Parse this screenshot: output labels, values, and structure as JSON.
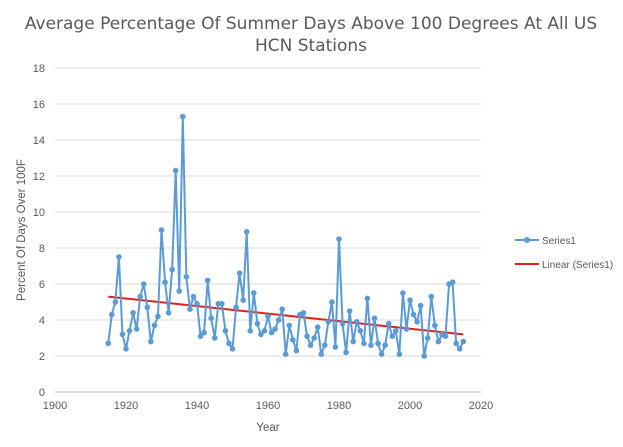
{
  "chart_data": {
    "type": "line",
    "title_lines": [
      "Average Percentage Of Summer Days Above 100 Degrees At All US",
      "HCN Stations"
    ],
    "xlabel": "Year",
    "ylabel": "Percent Of Days Over 100F",
    "xlim": [
      1900,
      2020
    ],
    "ylim": [
      0,
      18
    ],
    "x_ticks": [
      1900,
      1920,
      1940,
      1960,
      1980,
      2000,
      2020
    ],
    "y_ticks": [
      0,
      2,
      4,
      6,
      8,
      10,
      12,
      14,
      16,
      18
    ],
    "x_tick_labels": [
      "1900",
      "1920",
      "1940",
      "1960",
      "1980",
      "2000",
      "2020"
    ],
    "y_tick_labels": [
      "0",
      "2",
      "4",
      "6",
      "8",
      "10",
      "12",
      "14",
      "16",
      "18"
    ],
    "grid": true,
    "legend_position": "right",
    "series": [
      {
        "name": "Series1",
        "color": "#5b9bd5",
        "x": [
          1915,
          1916,
          1917,
          1918,
          1919,
          1920,
          1921,
          1922,
          1923,
          1924,
          1925,
          1926,
          1927,
          1928,
          1929,
          1930,
          1931,
          1932,
          1933,
          1934,
          1935,
          1936,
          1937,
          1938,
          1939,
          1940,
          1941,
          1942,
          1943,
          1944,
          1945,
          1946,
          1947,
          1948,
          1949,
          1950,
          1951,
          1952,
          1953,
          1954,
          1955,
          1956,
          1957,
          1958,
          1959,
          1960,
          1961,
          1962,
          1963,
          1964,
          1965,
          1966,
          1967,
          1968,
          1969,
          1970,
          1971,
          1972,
          1973,
          1974,
          1975,
          1976,
          1977,
          1978,
          1979,
          1980,
          1981,
          1982,
          1983,
          1984,
          1985,
          1986,
          1987,
          1988,
          1989,
          1990,
          1991,
          1992,
          1993,
          1994,
          1995,
          1996,
          1997,
          1998,
          1999,
          2000,
          2001,
          2002,
          2003,
          2004,
          2005,
          2006,
          2007,
          2008,
          2009,
          2010,
          2011,
          2012,
          2013,
          2014,
          2015
        ],
        "values": [
          2.7,
          4.3,
          5.0,
          7.5,
          3.2,
          2.4,
          3.4,
          4.4,
          3.5,
          5.3,
          6.0,
          4.7,
          2.8,
          3.7,
          4.2,
          9.0,
          6.1,
          4.4,
          6.8,
          12.3,
          5.6,
          15.3,
          6.4,
          4.6,
          5.3,
          4.9,
          3.1,
          3.3,
          6.2,
          4.1,
          3.0,
          4.9,
          4.9,
          3.4,
          2.7,
          2.4,
          4.7,
          6.6,
          5.1,
          8.9,
          3.4,
          5.5,
          3.8,
          3.2,
          3.4,
          4.2,
          3.3,
          3.5,
          4.0,
          4.6,
          2.1,
          3.7,
          2.9,
          2.3,
          4.3,
          4.4,
          3.1,
          2.6,
          3.0,
          3.6,
          2.1,
          2.6,
          3.9,
          5.0,
          2.5,
          8.5,
          3.8,
          2.2,
          4.5,
          2.8,
          3.9,
          3.4,
          2.7,
          5.2,
          2.6,
          4.1,
          2.7,
          2.1,
          2.6,
          3.8,
          3.1,
          3.4,
          2.1,
          5.5,
          3.5,
          5.1,
          4.3,
          3.9,
          4.8,
          2.0,
          3.0,
          5.3,
          3.7,
          2.8,
          3.2,
          3.1,
          6.0,
          6.1,
          2.7,
          2.4,
          2.8
        ]
      },
      {
        "name": "Linear (Series1)",
        "color": "#e0211c",
        "x": [
          1915,
          2015
        ],
        "values": [
          5.3,
          3.2
        ]
      }
    ]
  }
}
